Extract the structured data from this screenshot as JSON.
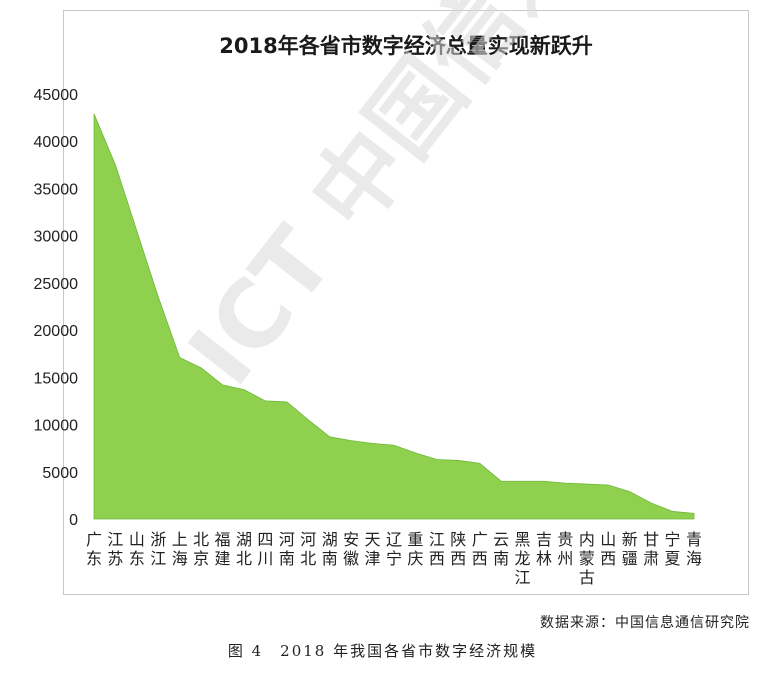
{
  "chart_data": {
    "type": "area",
    "title": "2018年各省市数字经济总量实现新跃升",
    "categories": [
      "广东",
      "江苏",
      "山东",
      "浙江",
      "上海",
      "北京",
      "福建",
      "湖北",
      "四川",
      "河南",
      "河北",
      "湖南",
      "安徽",
      "天津",
      "辽宁",
      "重庆",
      "江西",
      "陕西",
      "广西",
      "云南",
      "黑龙江",
      "吉林",
      "贵州",
      "内蒙古",
      "山西",
      "新疆",
      "甘肃",
      "宁夏",
      "青海"
    ],
    "values": [
      42900,
      37500,
      30500,
      23500,
      17100,
      16000,
      14200,
      13700,
      12500,
      12400,
      10500,
      8700,
      8300,
      8000,
      7800,
      7000,
      6300,
      6200,
      5900,
      4000,
      4000,
      4000,
      3800,
      3700,
      3600,
      2900,
      1700,
      800,
      600
    ],
    "ylim": [
      0,
      45000
    ],
    "yticks": [
      0,
      5000,
      10000,
      15000,
      20000,
      25000,
      30000,
      35000,
      40000,
      45000
    ],
    "grid": false,
    "fill_color": "#8fd14f"
  },
  "watermark": "CAICT 中国信通院",
  "source": "数据来源：中国信息通信研究院",
  "caption": "图 4　2018 年我国各省市数字经济规模"
}
